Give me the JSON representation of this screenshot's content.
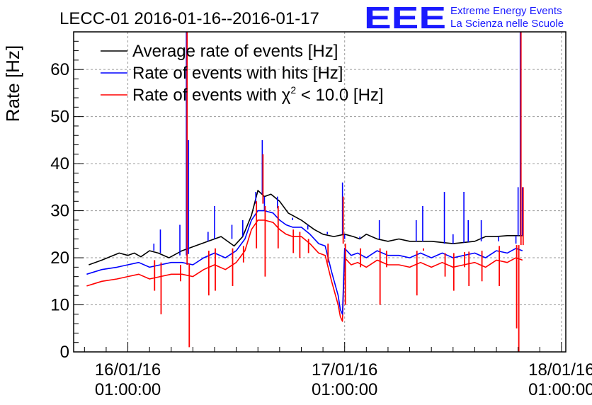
{
  "header": {
    "title": "LECC-01 2016-01-16--2016-01-17",
    "logo_text": "EEE",
    "logo_line1": "Extreme Energy Events",
    "logo_line2": "La Scienza nelle Scuole"
  },
  "colors": {
    "black": "#000000",
    "blue": "#0000ff",
    "red": "#ff0000",
    "logo": "#1a1aff",
    "grid": "#9a9a9a"
  },
  "chart_data": {
    "type": "line",
    "title": "LECC-01 2016-01-16--2016-01-17",
    "xlabel": "",
    "ylabel": "Rate [Hz]",
    "xlim": [
      -0.25,
      2.02
    ],
    "ylim": [
      0,
      68
    ],
    "grid": true,
    "legend_position": "top-left",
    "yticks": [
      0,
      10,
      20,
      30,
      40,
      50,
      60
    ],
    "xticks": [
      {
        "x": 0,
        "date": "16/01/16",
        "time": "01:00:00"
      },
      {
        "x": 1,
        "date": "17/01/16",
        "time": "01:00:00"
      },
      {
        "x": 2,
        "date": "18/01/16",
        "time": "01:00:00"
      }
    ],
    "legend": [
      {
        "series": "black",
        "text": "Average rate of events [Hz]"
      },
      {
        "series": "blue",
        "text": "Rate of events with hits [Hz]"
      },
      {
        "series": "red",
        "text_before": "Rate of events with ",
        "symbol": "χ",
        "sup": "2",
        "text_after": " < 10.0 [Hz]"
      }
    ],
    "series": [
      {
        "name": "Average rate of events [Hz]",
        "color": "#000000",
        "x": [
          -0.18,
          -0.12,
          -0.04,
          0.0,
          0.03,
          0.06,
          0.1,
          0.14,
          0.19,
          0.25,
          0.31,
          0.37,
          0.43,
          0.49,
          0.53,
          0.57,
          0.6,
          0.63,
          0.66,
          0.7,
          0.74,
          0.8,
          0.86,
          0.9,
          0.95,
          1.0,
          1.04,
          1.07,
          1.1,
          1.15,
          1.2,
          1.25,
          1.3,
          1.4,
          1.5,
          1.6,
          1.65,
          1.7,
          1.75,
          1.82
        ],
        "y": [
          18.5,
          19.5,
          21.0,
          20.5,
          21.0,
          20.2,
          21.5,
          21.0,
          20.0,
          21.5,
          22.5,
          23.5,
          24.5,
          22.5,
          24.5,
          29.0,
          34.3,
          33.0,
          33.5,
          32.0,
          29.5,
          28.0,
          26.0,
          25.0,
          24.5,
          25.0,
          24.5,
          24.0,
          25.0,
          24.0,
          23.5,
          24.0,
          23.5,
          23.5,
          23.0,
          23.5,
          24.5,
          24.5,
          24.7,
          24.7
        ]
      },
      {
        "name": "Rate of events with hits [Hz]",
        "color": "#0000ff",
        "x": [
          -0.19,
          -0.12,
          -0.05,
          0.0,
          0.05,
          0.1,
          0.15,
          0.2,
          0.25,
          0.3,
          0.35,
          0.4,
          0.45,
          0.5,
          0.54,
          0.57,
          0.6,
          0.63,
          0.67,
          0.7,
          0.73,
          0.76,
          0.8,
          0.84,
          0.88,
          0.91,
          0.94,
          0.97,
          0.98,
          0.99,
          1.0,
          1.03,
          1.06,
          1.1,
          1.15,
          1.2,
          1.25,
          1.3,
          1.35,
          1.4,
          1.45,
          1.5,
          1.55,
          1.6,
          1.65,
          1.7,
          1.75,
          1.79,
          1.82
        ],
        "y": [
          16.5,
          17.5,
          18.0,
          18.5,
          19.0,
          18.0,
          18.5,
          19.0,
          19.0,
          18.5,
          20.0,
          21.0,
          20.0,
          21.5,
          24.0,
          28.0,
          30.0,
          30.0,
          29.5,
          28.0,
          27.0,
          26.5,
          26.5,
          25.0,
          23.0,
          22.5,
          17.0,
          12.0,
          9.0,
          8.0,
          22.0,
          20.5,
          21.0,
          20.0,
          21.5,
          20.5,
          20.5,
          20.0,
          21.0,
          20.0,
          21.0,
          20.0,
          20.5,
          21.0,
          20.0,
          21.5,
          21.0,
          22.0,
          21.5
        ]
      },
      {
        "name": "Rate of events with χ2 < 10.0 [Hz]",
        "color": "#ff0000",
        "x": [
          -0.19,
          -0.12,
          -0.05,
          0.0,
          0.05,
          0.1,
          0.15,
          0.2,
          0.25,
          0.3,
          0.35,
          0.4,
          0.45,
          0.5,
          0.54,
          0.57,
          0.6,
          0.63,
          0.67,
          0.7,
          0.73,
          0.76,
          0.8,
          0.84,
          0.88,
          0.91,
          0.94,
          0.97,
          0.98,
          0.99,
          1.0,
          1.03,
          1.06,
          1.1,
          1.15,
          1.2,
          1.25,
          1.3,
          1.35,
          1.4,
          1.45,
          1.5,
          1.55,
          1.6,
          1.65,
          1.7,
          1.75,
          1.79,
          1.82
        ],
        "y": [
          14.0,
          15.0,
          15.5,
          16.0,
          16.5,
          15.5,
          16.0,
          16.5,
          16.5,
          16.0,
          17.5,
          18.5,
          17.5,
          19.0,
          21.5,
          26.0,
          28.0,
          28.0,
          27.5,
          26.0,
          25.0,
          24.5,
          24.5,
          23.0,
          21.0,
          20.5,
          15.0,
          10.0,
          7.5,
          6.5,
          20.0,
          18.5,
          19.0,
          18.0,
          19.5,
          18.5,
          18.5,
          18.0,
          19.0,
          18.0,
          19.0,
          18.0,
          18.5,
          19.0,
          18.0,
          19.5,
          19.0,
          20.0,
          19.5
        ]
      }
    ],
    "spikes": [
      {
        "x": 0.12,
        "black": 21.5,
        "blue": 23.0,
        "red": 13.0
      },
      {
        "x": 0.15,
        "black": 21.0,
        "blue": 26.0,
        "red": 8.0
      },
      {
        "x": 0.24,
        "black": 20.5,
        "blue": 27.0,
        "red": 15.0
      },
      {
        "x": 0.27,
        "black": 20.5,
        "blue": 68.0,
        "red": 68.0
      },
      {
        "x": 0.28,
        "black": 20.8,
        "blue": 45.0,
        "red": 1.0
      },
      {
        "x": 0.37,
        "black": 23.5,
        "blue": 25.5,
        "red": 12.0
      },
      {
        "x": 0.4,
        "black": 24.0,
        "blue": 31.0,
        "red": 13.0
      },
      {
        "x": 0.48,
        "black": 24.0,
        "blue": 27.0,
        "red": 14.0
      },
      {
        "x": 0.53,
        "black": 24.5,
        "blue": 28.0,
        "red": 19.0
      },
      {
        "x": 0.59,
        "black": 34.0,
        "blue": 31.5,
        "red": 22.0
      },
      {
        "x": 0.62,
        "black": 33.5,
        "blue": 45.0,
        "red": 42.0
      },
      {
        "x": 0.63,
        "black": 33.0,
        "blue": 30.0,
        "red": 16.0
      },
      {
        "x": 0.69,
        "black": 33.0,
        "blue": 30.5,
        "red": 22.0
      },
      {
        "x": 0.76,
        "black": 28.0,
        "blue": 28.5,
        "red": 21.0
      },
      {
        "x": 0.79,
        "black": 27.5,
        "blue": 27.5,
        "red": 20.0
      },
      {
        "x": 0.83,
        "black": 26.0,
        "blue": 27.0,
        "red": 21.0
      },
      {
        "x": 0.92,
        "black": 25.0,
        "blue": 25.5,
        "red": 19.0
      },
      {
        "x": 0.99,
        "black": 25.0,
        "blue": 36.0,
        "red": 33.0
      },
      {
        "x": 1.0,
        "black": 25.0,
        "blue": 24.0,
        "red": 10.0
      },
      {
        "x": 1.07,
        "black": 24.0,
        "blue": 24.5,
        "red": 18.0
      },
      {
        "x": 1.16,
        "black": 24.0,
        "blue": 28.0,
        "red": 10.0
      },
      {
        "x": 1.19,
        "black": 23.5,
        "blue": 23.5,
        "red": 18.0
      },
      {
        "x": 1.33,
        "black": 23.5,
        "blue": 28.0,
        "red": 12.0
      },
      {
        "x": 1.36,
        "black": 23.5,
        "blue": 31.0,
        "red": 22.0
      },
      {
        "x": 1.46,
        "black": 23.0,
        "blue": 34.0,
        "red": 16.0
      },
      {
        "x": 1.5,
        "black": 23.0,
        "blue": 25.0,
        "red": 13.0
      },
      {
        "x": 1.55,
        "black": 23.2,
        "blue": 34.0,
        "red": 18.0
      },
      {
        "x": 1.57,
        "black": 23.3,
        "blue": 28.0,
        "red": 14.0
      },
      {
        "x": 1.63,
        "black": 23.5,
        "blue": 28.0,
        "red": 15.0
      },
      {
        "x": 1.71,
        "black": 24.5,
        "blue": 23.5,
        "red": 14.0
      },
      {
        "x": 1.79,
        "black": 24.7,
        "blue": 23.0,
        "red": 5.0
      },
      {
        "x": 1.8,
        "black": 24.7,
        "blue": 35.0,
        "red": 0.0
      },
      {
        "x": 1.81,
        "black": 24.7,
        "blue": 68.0,
        "red": 68.0
      },
      {
        "x": 1.82,
        "black": 24.7,
        "blue": 35.0,
        "red": 35.0
      }
    ]
  }
}
